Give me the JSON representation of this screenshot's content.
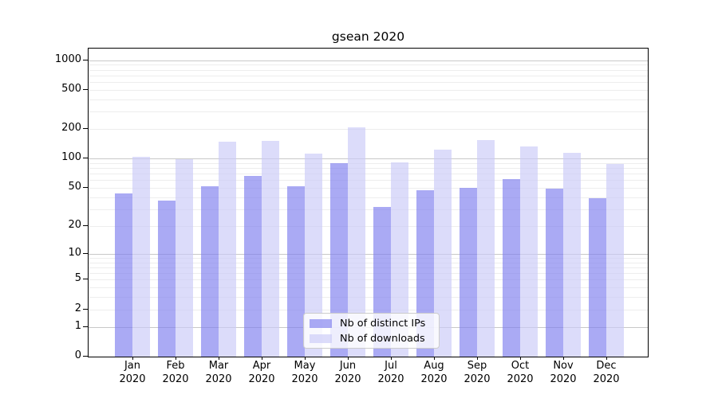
{
  "chart_data": {
    "type": "bar",
    "title": "gsean 2020",
    "categories": [
      "Jan",
      "Feb",
      "Mar",
      "Apr",
      "May",
      "Jun",
      "Jul",
      "Aug",
      "Sep",
      "Oct",
      "Nov",
      "Dec"
    ],
    "category_year": "2020",
    "series": [
      {
        "name": "Nb of distinct IPs",
        "color": "rgba(124,124,238,0.65)",
        "values": [
          44,
          37,
          52,
          67,
          52,
          90,
          32,
          47,
          50,
          62,
          49,
          39
        ]
      },
      {
        "name": "Nb of downloads",
        "color": "rgba(202,202,247,0.65)",
        "values": [
          105,
          98,
          150,
          151,
          113,
          210,
          91,
          124,
          155,
          132,
          115,
          88
        ]
      }
    ],
    "yscale": "log1p",
    "yticks": [
      0,
      1,
      2,
      5,
      10,
      20,
      50,
      100,
      200,
      500,
      1000
    ],
    "ylim": [
      0,
      1300
    ],
    "grid": "horizontal",
    "major_grid_values": [
      1,
      10,
      100,
      1000
    ],
    "legend_position": "lower center",
    "colors": {
      "major_grid": "#c8c8c8",
      "minor_grid": "#ededed",
      "spine": "#000000",
      "text": "#000000"
    }
  }
}
